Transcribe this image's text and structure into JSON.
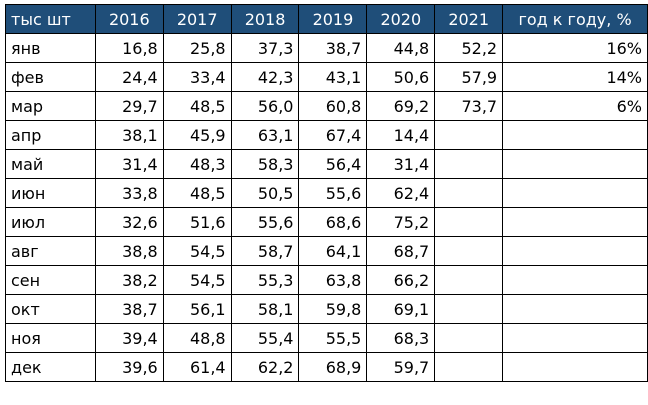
{
  "colors": {
    "header_background": "#1f4e79",
    "header_text": "#ffffff",
    "grid": "#000000"
  },
  "table": {
    "header": [
      "тыс шт",
      "2016",
      "2017",
      "2018",
      "2019",
      "2020",
      "2021",
      "год к году, %"
    ],
    "rows": [
      [
        "янв",
        "16,8",
        "25,8",
        "37,3",
        "38,7",
        "44,8",
        "52,2",
        "16%"
      ],
      [
        "фев",
        "24,4",
        "33,4",
        "42,3",
        "43,1",
        "50,6",
        "57,9",
        "14%"
      ],
      [
        "мар",
        "29,7",
        "48,5",
        "56,0",
        "60,8",
        "69,2",
        "73,7",
        "6%"
      ],
      [
        "апр",
        "38,1",
        "45,9",
        "63,1",
        "67,4",
        "14,4",
        "",
        ""
      ],
      [
        "май",
        "31,4",
        "48,3",
        "58,3",
        "56,4",
        "31,4",
        "",
        ""
      ],
      [
        "июн",
        "33,8",
        "48,5",
        "50,5",
        "55,6",
        "62,4",
        "",
        ""
      ],
      [
        "июл",
        "32,6",
        "51,6",
        "55,6",
        "68,6",
        "75,2",
        "",
        ""
      ],
      [
        "авг",
        "38,8",
        "54,5",
        "58,7",
        "64,1",
        "68,7",
        "",
        ""
      ],
      [
        "сен",
        "38,2",
        "54,5",
        "55,3",
        "63,8",
        "66,2",
        "",
        ""
      ],
      [
        "окт",
        "38,7",
        "56,1",
        "58,1",
        "59,8",
        "69,1",
        "",
        ""
      ],
      [
        "ноя",
        "39,4",
        "48,8",
        "55,4",
        "55,5",
        "68,3",
        "",
        ""
      ],
      [
        "дек",
        "39,6",
        "61,4",
        "62,2",
        "68,9",
        "59,7",
        "",
        ""
      ]
    ]
  }
}
